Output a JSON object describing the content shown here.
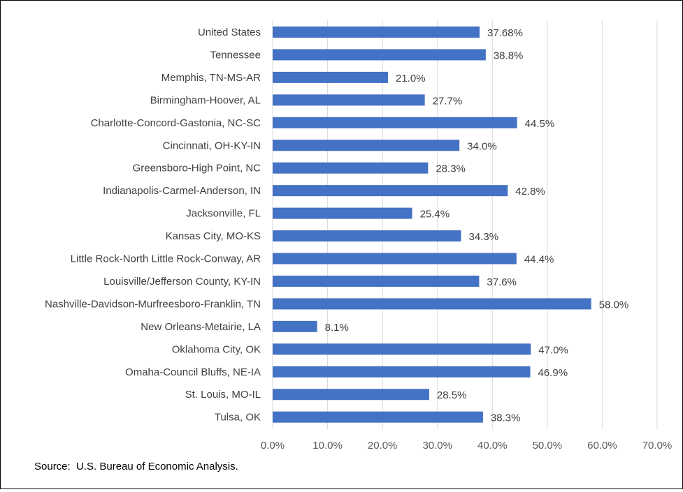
{
  "chart_data": {
    "type": "bar",
    "orientation": "horizontal",
    "categories": [
      "United States",
      "Tennessee",
      "Memphis, TN-MS-AR",
      "Birmingham-Hoover, AL",
      "Charlotte-Concord-Gastonia, NC-SC",
      "Cincinnati, OH-KY-IN",
      "Greensboro-High Point, NC",
      "Indianapolis-Carmel-Anderson, IN",
      "Jacksonville, FL",
      "Kansas City, MO-KS",
      "Little Rock-North Little Rock-Conway, AR",
      "Louisville/Jefferson County, KY-IN",
      "Nashville-Davidson-Murfreesboro-Franklin, TN",
      "New Orleans-Metairie, LA",
      "Oklahoma City, OK",
      "Omaha-Council Bluffs, NE-IA",
      "St. Louis, MO-IL",
      "Tulsa, OK"
    ],
    "values": [
      37.68,
      38.8,
      21.0,
      27.7,
      44.5,
      34.0,
      28.3,
      42.8,
      25.4,
      34.3,
      44.4,
      37.6,
      58.0,
      8.1,
      47.0,
      46.9,
      28.5,
      38.3
    ],
    "data_labels": [
      "37.68%",
      "38.8%",
      "21.0%",
      "27.7%",
      "44.5%",
      "34.0%",
      "28.3%",
      "42.8%",
      "25.4%",
      "34.3%",
      "44.4%",
      "37.6%",
      "58.0%",
      "8.1%",
      "47.0%",
      "46.9%",
      "28.5%",
      "38.3%"
    ],
    "xlim": [
      0,
      70
    ],
    "x_ticks": [
      0,
      10,
      20,
      30,
      40,
      50,
      60,
      70
    ],
    "x_tick_labels": [
      "0.0%",
      "10.0%",
      "20.0%",
      "30.0%",
      "40.0%",
      "50.0%",
      "60.0%",
      "70.0%"
    ],
    "grid": true,
    "legend": false,
    "bar_color": "#4472C4",
    "grid_color": "#D9D9D9"
  },
  "source_note": "Source:  U.S. Bureau of Economic Analysis."
}
